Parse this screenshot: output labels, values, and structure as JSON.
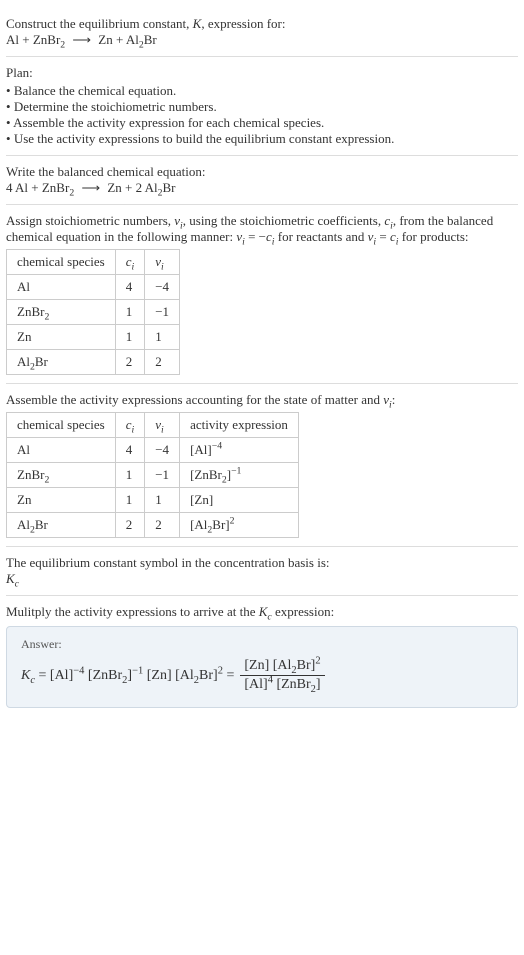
{
  "intro": {
    "line1": "Construct the equilibrium constant, <span class=\"ital\">K</span>, expression for:",
    "equation": "Al + ZnBr<sub>2</sub> <span class=\"arrow\">⟶</span> Zn + Al<sub>2</sub>Br"
  },
  "plan": {
    "title": "Plan:",
    "items": [
      "Balance the chemical equation.",
      "Determine the stoichiometric numbers.",
      "Assemble the activity expression for each chemical species.",
      "Use the activity expressions to build the equilibrium constant expression."
    ]
  },
  "balanced": {
    "title": "Write the balanced chemical equation:",
    "equation": "4 Al + ZnBr<sub>2</sub> <span class=\"arrow\">⟶</span> Zn + 2 Al<sub>2</sub>Br"
  },
  "stoich": {
    "intro": "Assign stoichiometric numbers, <span class=\"ital\">ν<sub>i</sub></span>, using the stoichiometric coefficients, <span class=\"ital\">c<sub>i</sub></span>, from the balanced chemical equation in the following manner: <span class=\"ital\">ν<sub>i</sub></span> = −<span class=\"ital\">c<sub>i</sub></span> for reactants and <span class=\"ital\">ν<sub>i</sub></span> = <span class=\"ital\">c<sub>i</sub></span> for products:",
    "headers": [
      "chemical species",
      "<span class=\"ital\">c<sub>i</sub></span>",
      "<span class=\"ital\">ν<sub>i</sub></span>"
    ],
    "rows": [
      [
        "Al",
        "4",
        "−4"
      ],
      [
        "ZnBr<sub>2</sub>",
        "1",
        "−1"
      ],
      [
        "Zn",
        "1",
        "1"
      ],
      [
        "Al<sub>2</sub>Br",
        "2",
        "2"
      ]
    ]
  },
  "activity": {
    "intro": "Assemble the activity expressions accounting for the state of matter and <span class=\"ital\">ν<sub>i</sub></span>:",
    "headers": [
      "chemical species",
      "<span class=\"ital\">c<sub>i</sub></span>",
      "<span class=\"ital\">ν<sub>i</sub></span>",
      "activity expression"
    ],
    "rows": [
      [
        "Al",
        "4",
        "−4",
        "[Al]<sup>−4</sup>"
      ],
      [
        "ZnBr<sub>2</sub>",
        "1",
        "−1",
        "[ZnBr<sub>2</sub>]<sup>−1</sup>"
      ],
      [
        "Zn",
        "1",
        "1",
        "[Zn]"
      ],
      [
        "Al<sub>2</sub>Br",
        "2",
        "2",
        "[Al<sub>2</sub>Br]<sup>2</sup>"
      ]
    ]
  },
  "symbol": {
    "line1": "The equilibrium constant symbol in the concentration basis is:",
    "line2": "<span class=\"ital\">K<sub>c</sub></span>"
  },
  "multiply": {
    "text": "Mulitply the activity expressions to arrive at the <span class=\"ital\">K<sub>c</sub></span> expression:"
  },
  "answer": {
    "label": "Answer:",
    "lhs": "<span class=\"ital\">K<sub>c</sub></span> = [Al]<sup>−4</sup> [ZnBr<sub>2</sub>]<sup>−1</sup> [Zn] [Al<sub>2</sub>Br]<sup>2</sup> =",
    "num": "[Zn] [Al<sub>2</sub>Br]<sup>2</sup>",
    "den": "[Al]<sup>4</sup> [ZnBr<sub>2</sub>]"
  },
  "style": {
    "border_color": "#ddd",
    "table_border": "#ccc",
    "answer_bg": "#eef3f8",
    "answer_border": "#cfd9e3",
    "text_color": "#333",
    "font_family": "Georgia"
  }
}
